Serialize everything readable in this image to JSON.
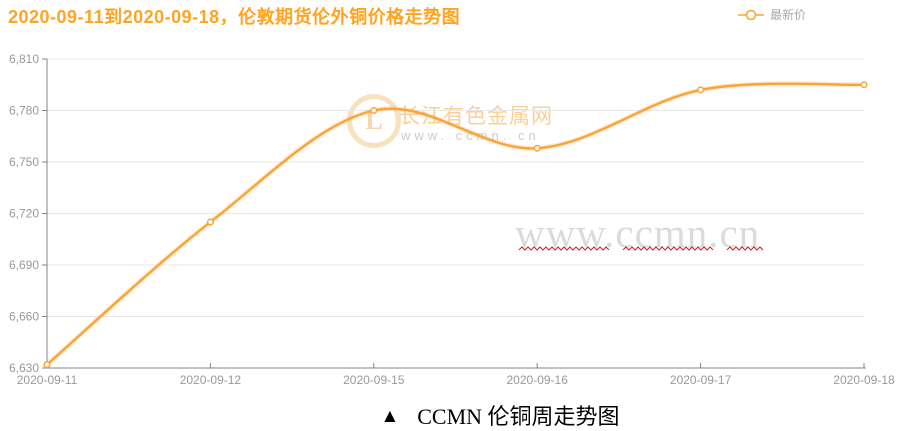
{
  "chart_data": {
    "type": "line",
    "smooth": true,
    "title": "2020-09-11到2020-09-18，伦敦期货伦外铜价格走势图",
    "categories": [
      "2020-09-11",
      "2020-09-12",
      "2020-09-15",
      "2020-09-16",
      "2020-09-17",
      "2020-09-18"
    ],
    "series": [
      {
        "name": "最新价",
        "values": [
          6632,
          6715,
          6780,
          6758,
          6792,
          6795
        ],
        "marker": "hollow-circle"
      }
    ],
    "xlabel": "",
    "ylabel": "",
    "ylim": [
      6630,
      6810
    ],
    "ytick_interval": 30,
    "yticks": [
      "6,810",
      "6,780",
      "6,750",
      "6,720",
      "6,690",
      "6,660",
      "6,630"
    ],
    "grid": true,
    "legend_position": "top-right"
  },
  "legend": {
    "label": "最新价",
    "marker_icon": "line-circle-icon"
  },
  "watermark": {
    "logo_icon": "ccmn-ring-logo-icon",
    "logo_letter": "L",
    "logo_text": "长江有色金属网",
    "logo_subtext": "www. ccmn. cn",
    "big_text": "www.ccmn.cn"
  },
  "caption": {
    "marker": "▲",
    "text": "CCMN 伦铜周走势图"
  },
  "colors": {
    "title": "#ffa321",
    "line": "#faa437",
    "axis": "#848484",
    "grid": "#e8e8e8",
    "tick": "#999999",
    "legend_text": "#aaaaaa",
    "watermark_orange": "rgba(247,196,122,0.8)",
    "watermark_gray": "#dbdbdb",
    "squiggle": "#cc2222"
  }
}
